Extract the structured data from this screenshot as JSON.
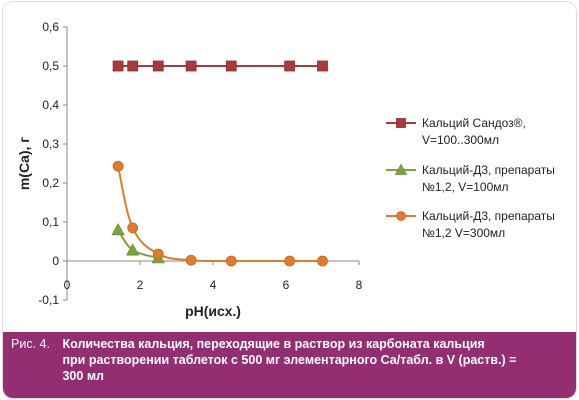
{
  "chart_data": {
    "type": "line",
    "xlabel": "pH(исх.)",
    "ylabel": "m(Ca), г",
    "xlim": [
      0,
      8
    ],
    "ylim": [
      -0.1,
      0.6
    ],
    "x_ticks": [
      "0",
      "2",
      "4",
      "6",
      "8"
    ],
    "y_ticks": [
      "-0,1",
      "0",
      "0,1",
      "0,2",
      "0,3",
      "0,4",
      "0,5",
      "0,6"
    ],
    "grid": false,
    "legend_position": "right",
    "series": [
      {
        "name_lines": [
          "Кальций Сандоз®,",
          "V=100..300мл"
        ],
        "color": "#a83a3a",
        "marker": "square",
        "x": [
          1.4,
          1.8,
          2.5,
          3.4,
          4.5,
          6.1,
          7.0
        ],
        "y": [
          0.5,
          0.5,
          0.5,
          0.5,
          0.5,
          0.5,
          0.5
        ]
      },
      {
        "name_lines": [
          "Кальций-Д3, препараты",
          "№1,2, V=100мл"
        ],
        "color": "#7aa43c",
        "marker": "triangle",
        "x": [
          1.4,
          1.8,
          2.5
        ],
        "y": [
          0.08,
          0.028,
          0.008
        ]
      },
      {
        "name_lines": [
          "Кальций-Д3, препараты",
          "№1,2 V=300мл"
        ],
        "color": "#e07b2e",
        "marker": "circle",
        "x": [
          1.4,
          1.8,
          2.5,
          3.4,
          4.5,
          6.1,
          7.0
        ],
        "y": [
          0.243,
          0.085,
          0.018,
          0.002,
          0.0,
          0.0,
          0.0
        ]
      }
    ]
  },
  "caption": {
    "label": "Рис. 4.",
    "lines": [
      "Количества кальция, переходящие в раствор из карбоната кальция",
      "при растворении таблеток с 500 мг элементарного Са/табл. в V (раств.) =",
      "300 мл"
    ]
  }
}
